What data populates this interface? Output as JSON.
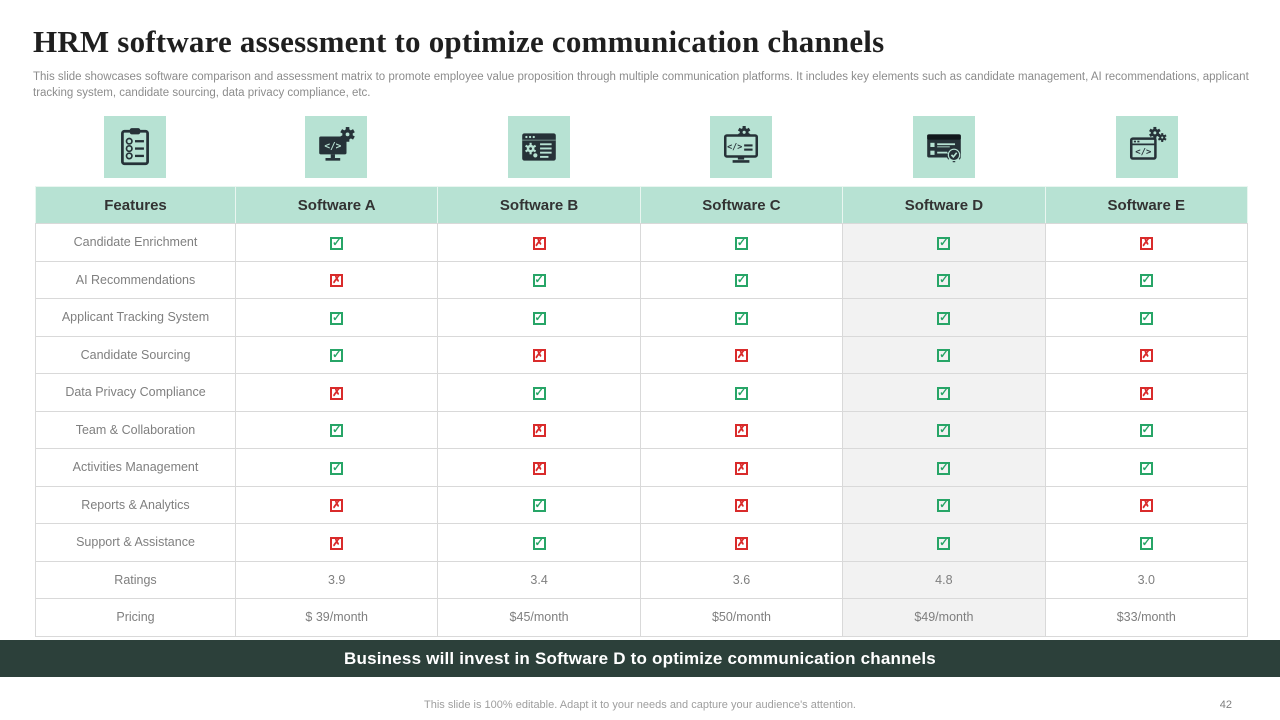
{
  "slide": {
    "title": "HRM software assessment to optimize communication channels",
    "subtitle": "This slide showcases software comparison and assessment matrix to promote employee value proposition through multiple communication platforms. It includes key elements such as candidate management, AI recommendations, applicant tracking system, candidate sourcing, data privacy compliance, etc.",
    "banner_text": "Business will invest in Software D to optimize communication channels",
    "footer_note": "This slide is 100% editable. Adapt it to your needs and capture your audience's attention.",
    "page_number": "42"
  },
  "icons": [
    {
      "name": "clipboard-checklist-icon"
    },
    {
      "name": "monitor-code-gear-icon"
    },
    {
      "name": "browser-settings-list-icon"
    },
    {
      "name": "monitor-code-lines-gear-icon"
    },
    {
      "name": "card-checklist-badge-icon"
    },
    {
      "name": "window-code-gears-icon"
    }
  ],
  "table": {
    "headers": [
      "Features",
      "Software A",
      "Software B",
      "Software C",
      "Software D",
      "Software E"
    ],
    "highlight_column": "Software D",
    "rows": [
      {
        "feature": "Candidate Enrichment",
        "values": [
          "check",
          "cross",
          "check",
          "check",
          "cross"
        ]
      },
      {
        "feature": "AI Recommendations",
        "values": [
          "cross",
          "check",
          "check",
          "check",
          "check"
        ]
      },
      {
        "feature": "Applicant Tracking System",
        "values": [
          "check",
          "check",
          "check",
          "check",
          "check"
        ]
      },
      {
        "feature": "Candidate Sourcing",
        "values": [
          "check",
          "cross",
          "cross",
          "check",
          "cross"
        ]
      },
      {
        "feature": "Data Privacy Compliance",
        "values": [
          "cross",
          "check",
          "check",
          "check",
          "cross"
        ]
      },
      {
        "feature": "Team & Collaboration",
        "values": [
          "check",
          "cross",
          "cross",
          "check",
          "check"
        ]
      },
      {
        "feature": "Activities Management",
        "values": [
          "check",
          "cross",
          "cross",
          "check",
          "check"
        ]
      },
      {
        "feature": "Reports & Analytics",
        "values": [
          "cross",
          "check",
          "cross",
          "check",
          "cross"
        ]
      },
      {
        "feature": "Support & Assistance",
        "values": [
          "cross",
          "check",
          "cross",
          "check",
          "check"
        ]
      },
      {
        "feature": "Ratings",
        "values": [
          "3.9",
          "3.4",
          "3.6",
          "4.8",
          "3.0"
        ]
      },
      {
        "feature": "Pricing",
        "values": [
          "$ 39/month",
          "$45/month",
          "$50/month",
          "$49/month",
          "$33/month"
        ]
      }
    ],
    "check_symbol": "✓",
    "cross_symbol": "✗"
  },
  "colors": {
    "header_bg": "#b7e2d3",
    "icon_tile_bg": "#b7e2d3",
    "icon_glyph": "#263238",
    "highlight_column_bg": "#f2f2f2",
    "check_green": "#27a567",
    "cross_red": "#d92b2b",
    "banner_bg": "#2c403a",
    "title_color": "#1f1f1f",
    "body_text_gray": "#7f7f7f"
  }
}
